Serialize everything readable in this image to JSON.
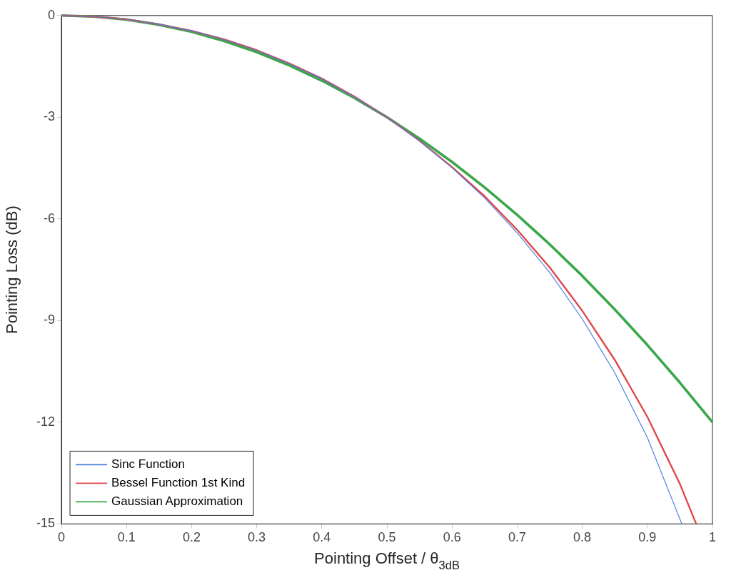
{
  "chart_data": {
    "type": "line",
    "xlabel": "Pointing Offset / θ$_{3dB}$",
    "ylabel": "Pointing Loss (dB)",
    "xlim": [
      0,
      1
    ],
    "xticks": [
      0,
      0.1,
      0.2,
      0.3,
      0.4,
      0.5,
      0.6,
      0.7,
      0.8,
      0.9,
      1
    ],
    "ylim": [
      -15,
      0
    ],
    "yticks": [
      -15,
      -12,
      -9,
      -6,
      -3,
      0
    ],
    "legend": "bottom left",
    "marker": "none",
    "line_style": "solid",
    "series": [
      {
        "name": "Sinc Function",
        "color": "#4a7fe0",
        "x": [
          0,
          0.05,
          0.1,
          0.15,
          0.2,
          0.25,
          0.3,
          0.35,
          0.4,
          0.45,
          0.5,
          0.55,
          0.6,
          0.65,
          0.7,
          0.75,
          0.8,
          0.85,
          0.9,
          0.953
        ],
        "values": [
          0,
          -0.03,
          -0.11,
          -0.26,
          -0.45,
          -0.71,
          -1.03,
          -1.42,
          -1.87,
          -2.4,
          -3,
          -3.7,
          -4.49,
          -5.38,
          -6.41,
          -7.58,
          -8.95,
          -10.54,
          -12.45,
          -15
        ]
      },
      {
        "name": "Bessel Function 1st Kind",
        "color": "#e0474c",
        "x": [
          0,
          0.05,
          0.1,
          0.15,
          0.2,
          0.25,
          0.3,
          0.35,
          0.4,
          0.45,
          0.5,
          0.55,
          0.6,
          0.65,
          0.7,
          0.75,
          0.8,
          0.85,
          0.9,
          0.95,
          0.975
        ],
        "values": [
          0,
          -0.03,
          -0.11,
          -0.26,
          -0.45,
          -0.7,
          -1.02,
          -1.41,
          -1.86,
          -2.39,
          -3,
          -3.69,
          -4.47,
          -5.33,
          -6.32,
          -7.43,
          -8.71,
          -10.16,
          -11.84,
          -13.82,
          -15
        ]
      },
      {
        "name": "Gaussian Approximation",
        "color": "#3aa84a",
        "x": [
          0,
          0.05,
          0.1,
          0.15,
          0.2,
          0.25,
          0.3,
          0.35,
          0.4,
          0.45,
          0.5,
          0.55,
          0.6,
          0.65,
          0.7,
          0.75,
          0.8,
          0.85,
          0.9,
          0.95,
          1
        ],
        "values": [
          0,
          -0.03,
          -0.12,
          -0.27,
          -0.48,
          -0.75,
          -1.08,
          -1.47,
          -1.92,
          -2.43,
          -3,
          -3.63,
          -4.32,
          -5.07,
          -5.88,
          -6.75,
          -7.68,
          -8.67,
          -9.72,
          -10.83,
          -12
        ]
      }
    ]
  }
}
